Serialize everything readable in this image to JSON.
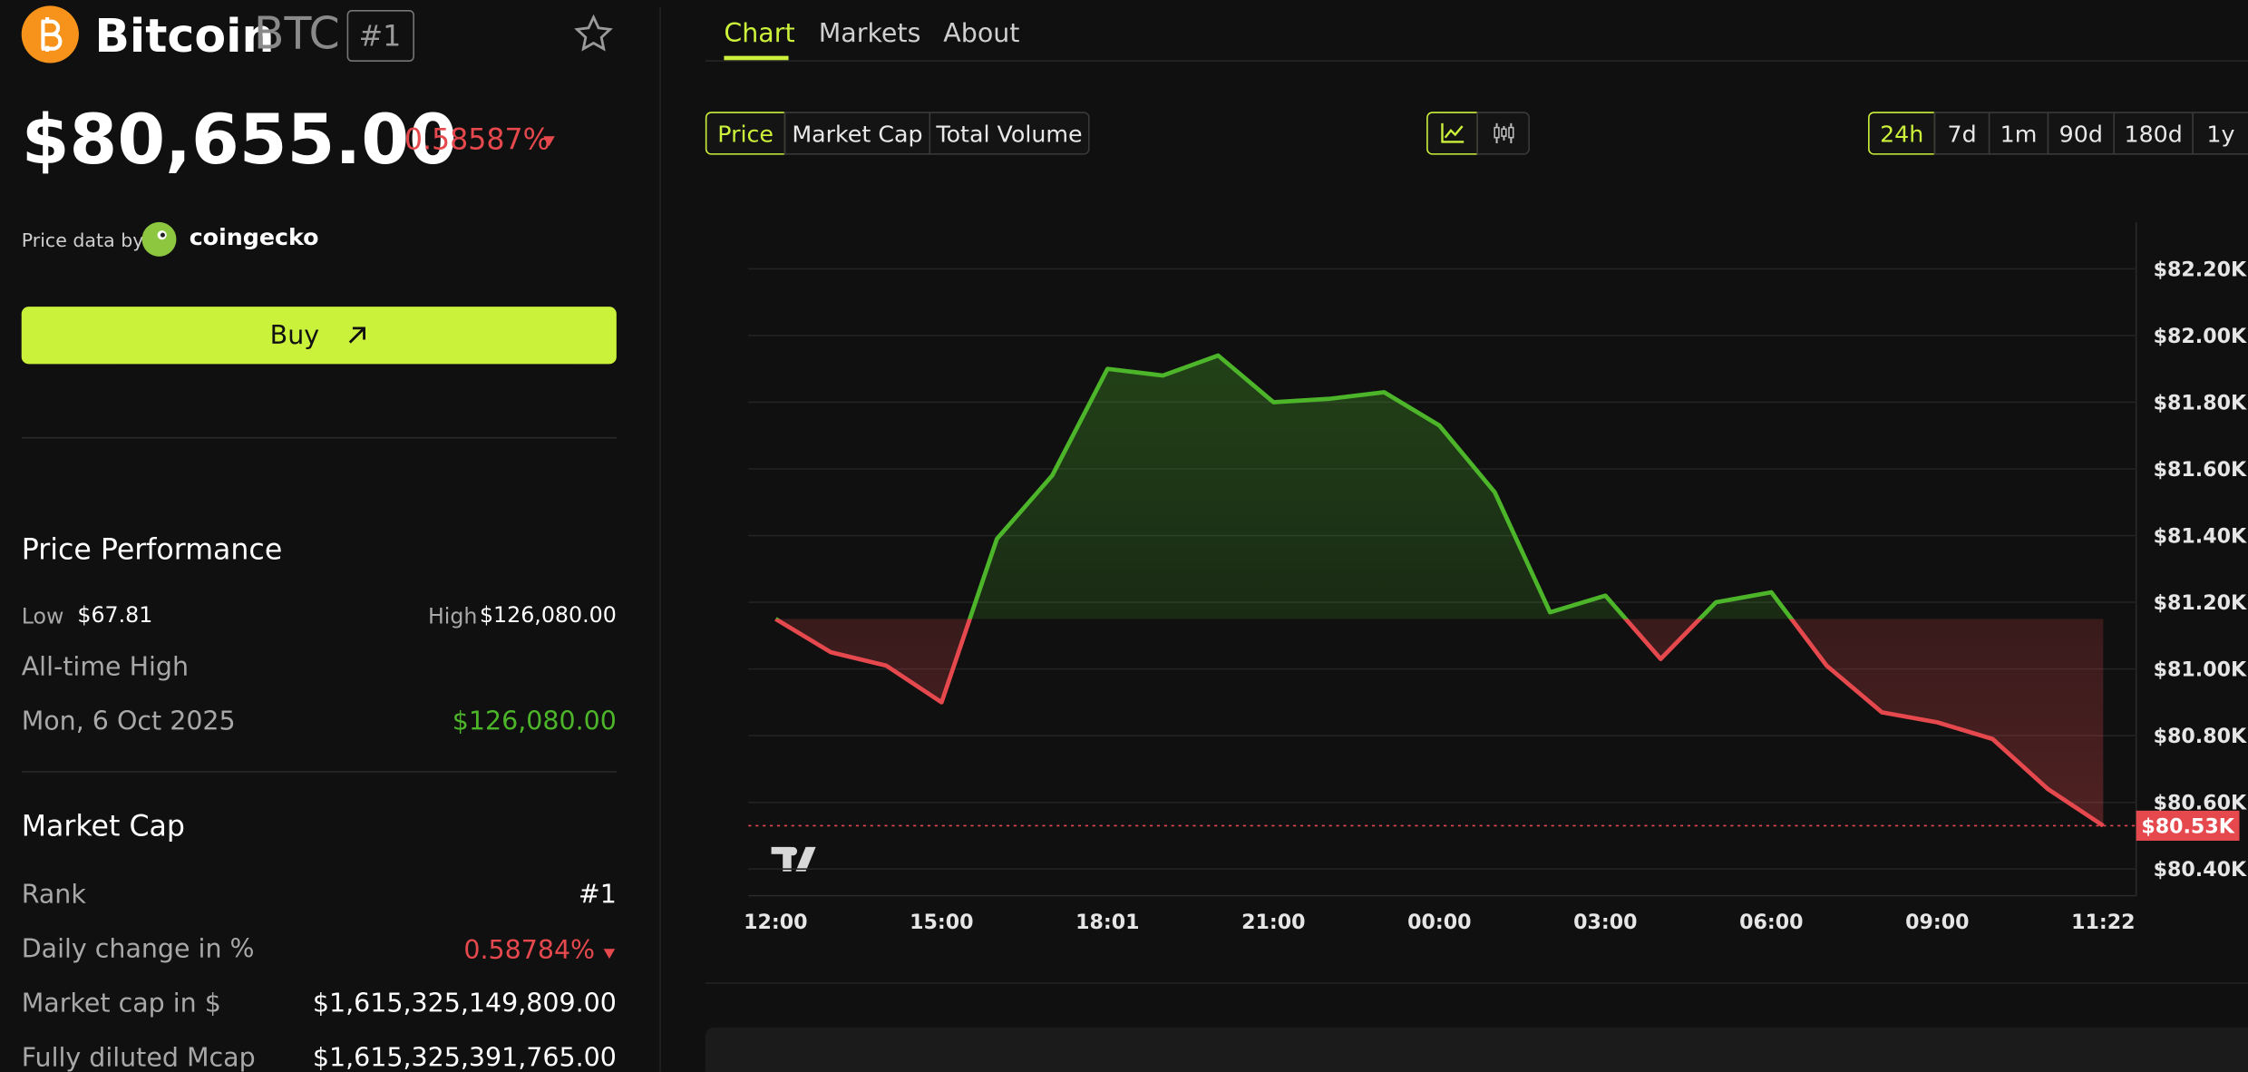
{
  "coin": {
    "name": "Bitcoin",
    "symbol": "BTC",
    "rank": "#1"
  },
  "price": "$80,655.00",
  "change": "0.58587%",
  "price_source": {
    "label": "Price data by",
    "provider": "coingecko"
  },
  "buy_button": "Buy",
  "performance": {
    "title": "Price Performance",
    "low_label": "Low",
    "low": "$67.81",
    "high_label": "High",
    "high": "$126,080.00",
    "ath_label": "All-time High",
    "ath_date": "Mon, 6 Oct 2025",
    "ath_value": "$126,080.00"
  },
  "market_cap": {
    "title": "Market Cap",
    "rows": [
      [
        "Rank",
        "#1"
      ],
      [
        "Daily change in %",
        "0.58784%"
      ],
      [
        "Market cap in $",
        "$1,615,325,149,809.00"
      ],
      [
        "Fully diluted Mcap",
        "$1,615,325,391,765.00"
      ]
    ]
  },
  "tabs": [
    "Chart",
    "Markets",
    "About"
  ],
  "metric_buttons": [
    "Price",
    "Market Cap",
    "Total Volume"
  ],
  "ranges": [
    "24h",
    "7d",
    "1m",
    "90d",
    "180d",
    "1y"
  ],
  "chart_data": {
    "type": "line",
    "categories": [
      "12:00",
      null,
      null,
      "15:00",
      null,
      null,
      "18:01",
      null,
      null,
      "21:00",
      null,
      null,
      "00:00",
      null,
      null,
      "03:00",
      null,
      null,
      "06:00",
      null,
      null,
      "09:00",
      null,
      null,
      "11:22"
    ],
    "values": [
      81.15,
      81.05,
      81.01,
      80.9,
      81.39,
      81.58,
      81.9,
      81.88,
      81.94,
      81.8,
      81.81,
      81.83,
      81.73,
      81.53,
      81.17,
      81.22,
      81.03,
      81.2,
      81.23,
      81.01,
      80.87,
      80.84,
      80.79,
      80.64,
      80.53
    ],
    "up_color": "#4cb52a",
    "down_color": "#e5484d",
    "ylim": [
      80.32,
      82.34
    ],
    "yticks": [
      {
        "value": 80.4,
        "label": "$80.40K"
      },
      {
        "value": 80.6,
        "label": "$80.60K"
      },
      {
        "value": 80.8,
        "label": "$80.80K"
      },
      {
        "value": 81.0,
        "label": "$81.00K"
      },
      {
        "value": 81.2,
        "label": "$81.20K"
      },
      {
        "value": 81.4,
        "label": "$81.40K"
      },
      {
        "value": 81.6,
        "label": "$81.60K"
      },
      {
        "value": 81.8,
        "label": "$81.80K"
      },
      {
        "value": 82.0,
        "label": "$82.00K"
      },
      {
        "value": 82.2,
        "label": "$82.20K"
      }
    ],
    "grid": true,
    "price_line": {
      "value": 80.53,
      "label": "$80.53K"
    }
  }
}
